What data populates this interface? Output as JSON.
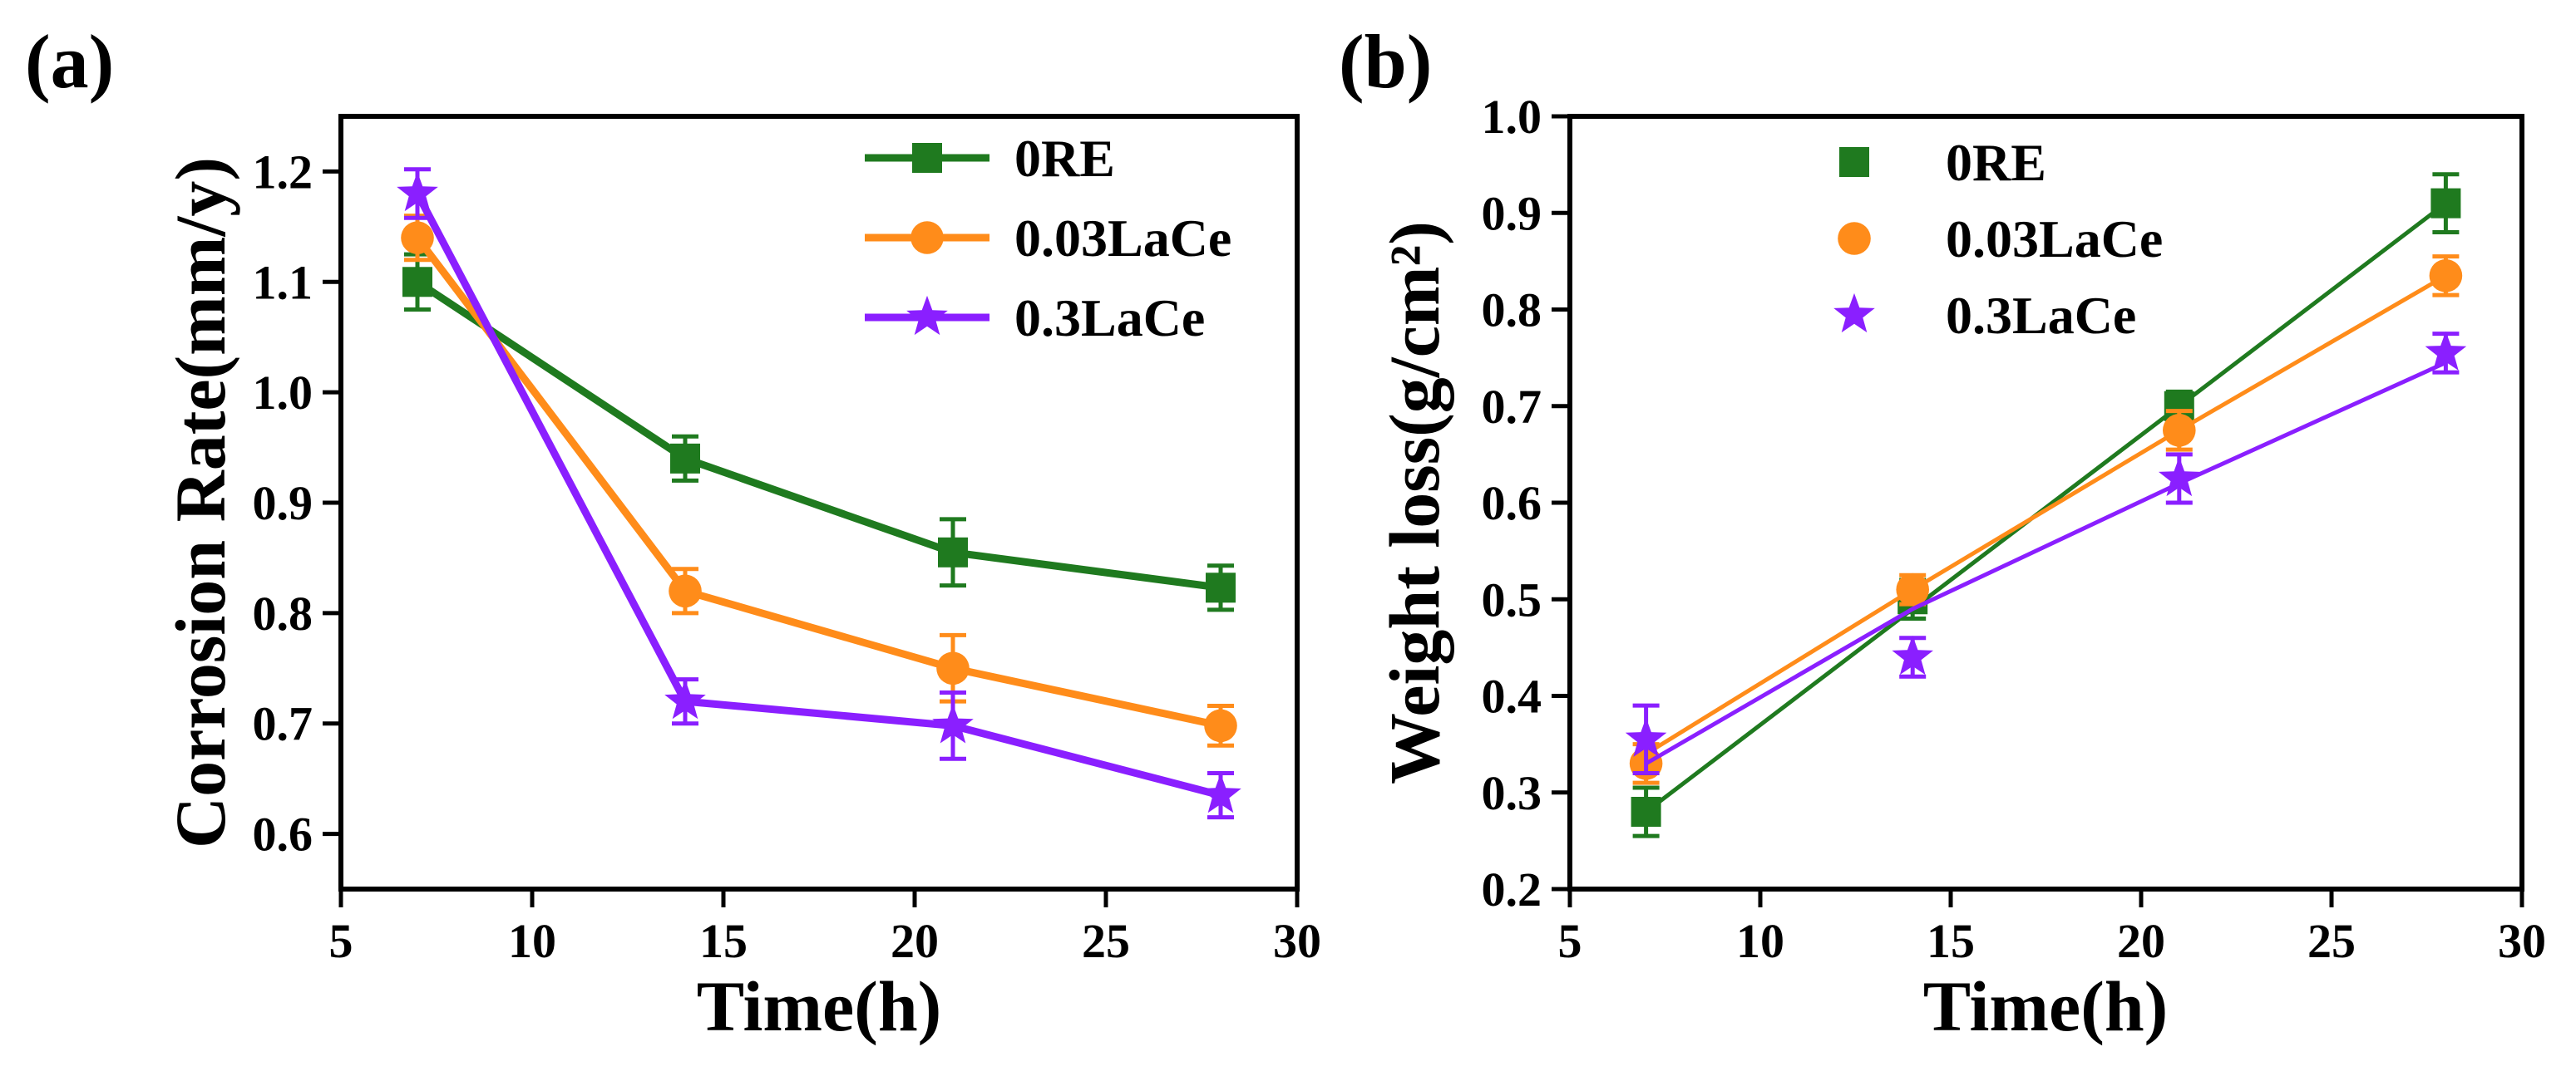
{
  "figure": {
    "panels": [
      {
        "label": "(a)"
      },
      {
        "label": "(b)"
      }
    ]
  },
  "chart_data": [
    {
      "type": "line",
      "panel_label": "(a)",
      "title": "",
      "xlabel": "Time(h)",
      "ylabel": "Corrosion Rate(mm/y)",
      "xlim": [
        5,
        30
      ],
      "ylim": [
        0.55,
        1.25
      ],
      "xticks": [
        5,
        10,
        15,
        20,
        25,
        30
      ],
      "xtick_labels": [
        "5",
        "10",
        "15",
        "20",
        "25",
        "30"
      ],
      "yticks": [
        0.6,
        0.7,
        0.8,
        0.9,
        1.0,
        1.1,
        1.2
      ],
      "ytick_labels": [
        "0.6",
        "0.7",
        "0.8",
        "0.9",
        "1.0",
        "1.1",
        "1.2"
      ],
      "grid": false,
      "legend_position": "top-right",
      "x": [
        7,
        14,
        21,
        28
      ],
      "series": [
        {
          "name": "0RE",
          "color": "#1f7a1f",
          "marker": "square",
          "values": [
            1.1,
            0.94,
            0.855,
            0.823
          ],
          "errors": [
            0.025,
            0.02,
            0.03,
            0.02
          ]
        },
        {
          "name": "0.03LaCe",
          "color": "#ff8c1a",
          "marker": "circle",
          "values": [
            1.14,
            0.82,
            0.75,
            0.698
          ],
          "errors": [
            0.02,
            0.02,
            0.03,
            0.018
          ]
        },
        {
          "name": "0.3LaCe",
          "color": "#8a1fff",
          "marker": "star",
          "values": [
            1.18,
            0.72,
            0.698,
            0.635
          ],
          "errors": [
            0.022,
            0.02,
            0.03,
            0.02
          ]
        }
      ]
    },
    {
      "type": "scatter",
      "panel_label": "(b)",
      "title": "",
      "xlabel": "Time(h)",
      "ylabel": "Weight loss(g/cm²)",
      "xlim": [
        5,
        30
      ],
      "ylim": [
        0.2,
        1.0
      ],
      "xticks": [
        5,
        10,
        15,
        20,
        25,
        30
      ],
      "xtick_labels": [
        "5",
        "10",
        "15",
        "20",
        "25",
        "30"
      ],
      "yticks": [
        0.2,
        0.3,
        0.4,
        0.5,
        0.6,
        0.7,
        0.8,
        0.9,
        1.0
      ],
      "ytick_labels": [
        "0.2",
        "0.3",
        "0.4",
        "0.5",
        "0.6",
        "0.7",
        "0.8",
        "0.9",
        "1.0"
      ],
      "grid": false,
      "legend_position": "top-center",
      "trend_lines": "linear fit per series",
      "x": [
        7,
        14,
        21,
        28
      ],
      "series": [
        {
          "name": "0RE",
          "color": "#1f7a1f",
          "marker": "square",
          "values": [
            0.28,
            0.5,
            0.7,
            0.91
          ],
          "errors": [
            0.025,
            0.02,
            0.015,
            0.03
          ],
          "fit": [
            0.28,
            0.49,
            0.7,
            0.91
          ]
        },
        {
          "name": "0.03LaCe",
          "color": "#ff8c1a",
          "marker": "circle",
          "values": [
            0.33,
            0.51,
            0.675,
            0.835
          ],
          "errors": [
            0.02,
            0.015,
            0.02,
            0.02
          ],
          "fit": [
            0.34,
            0.51,
            0.675,
            0.835
          ]
        },
        {
          "name": "0.3LaCe",
          "color": "#8a1fff",
          "marker": "star",
          "values": [
            0.355,
            0.44,
            0.625,
            0.755
          ],
          "errors": [
            0.035,
            0.02,
            0.025,
            0.02
          ],
          "fit": [
            0.33,
            0.49,
            0.62,
            0.745
          ]
        }
      ]
    }
  ]
}
